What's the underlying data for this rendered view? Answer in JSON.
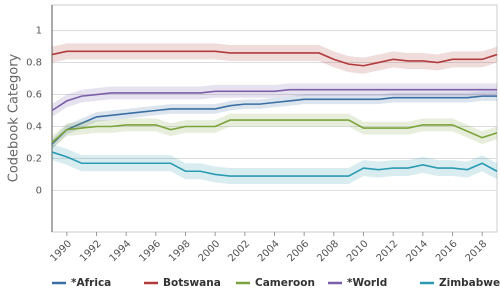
{
  "chart_data": {
    "type": "line",
    "y_label": "Codebook Category",
    "x": [
      1989,
      1990,
      1991,
      1992,
      1993,
      1994,
      1995,
      1996,
      1997,
      1998,
      1999,
      2000,
      2001,
      2002,
      2003,
      2004,
      2005,
      2006,
      2007,
      2008,
      2009,
      2010,
      2011,
      2012,
      2013,
      2014,
      2015,
      2016,
      2017,
      2018,
      2019
    ],
    "xlim": [
      1989,
      2019
    ],
    "xticks": [
      1990,
      1992,
      1994,
      1996,
      1998,
      2000,
      2002,
      2004,
      2006,
      2008,
      2010,
      2012,
      2014,
      2016,
      2018
    ],
    "ylim": [
      -0.26,
      1.16
    ],
    "yticks": [
      0,
      0.2,
      0.4,
      0.6,
      0.8,
      1
    ],
    "grid": true,
    "series": [
      {
        "name": "*Africa",
        "color": "#3b6fa3",
        "ci": 0.03,
        "values": [
          0.29,
          0.38,
          0.42,
          0.46,
          0.47,
          0.48,
          0.49,
          0.5,
          0.51,
          0.51,
          0.51,
          0.51,
          0.53,
          0.54,
          0.54,
          0.55,
          0.56,
          0.57,
          0.57,
          0.57,
          0.57,
          0.57,
          0.57,
          0.58,
          0.58,
          0.58,
          0.58,
          0.58,
          0.58,
          0.59,
          0.59
        ]
      },
      {
        "name": "Botswana",
        "color": "#b23b3b",
        "ci": 0.05,
        "values": [
          0.85,
          0.87,
          0.87,
          0.87,
          0.87,
          0.87,
          0.87,
          0.87,
          0.87,
          0.87,
          0.87,
          0.87,
          0.86,
          0.86,
          0.86,
          0.86,
          0.86,
          0.86,
          0.86,
          0.82,
          0.79,
          0.78,
          0.8,
          0.82,
          0.81,
          0.81,
          0.8,
          0.82,
          0.82,
          0.82,
          0.85
        ]
      },
      {
        "name": "Cameroon",
        "color": "#7ba33b",
        "ci": 0.04,
        "values": [
          0.3,
          0.38,
          0.39,
          0.4,
          0.4,
          0.41,
          0.41,
          0.41,
          0.38,
          0.4,
          0.4,
          0.4,
          0.44,
          0.44,
          0.44,
          0.44,
          0.44,
          0.44,
          0.44,
          0.44,
          0.44,
          0.39,
          0.39,
          0.39,
          0.39,
          0.41,
          0.41,
          0.41,
          0.37,
          0.33,
          0.36
        ]
      },
      {
        "name": "*World",
        "color": "#7b5fa8",
        "ci": 0.04,
        "values": [
          0.5,
          0.56,
          0.59,
          0.6,
          0.61,
          0.61,
          0.61,
          0.61,
          0.61,
          0.61,
          0.61,
          0.62,
          0.62,
          0.62,
          0.62,
          0.62,
          0.63,
          0.63,
          0.63,
          0.63,
          0.63,
          0.63,
          0.63,
          0.63,
          0.63,
          0.63,
          0.63,
          0.63,
          0.63,
          0.63,
          0.63
        ]
      },
      {
        "name": "Zimbabwe",
        "color": "#2a9bb2",
        "ci": 0.05,
        "values": [
          0.24,
          0.21,
          0.17,
          0.17,
          0.17,
          0.17,
          0.17,
          0.17,
          0.17,
          0.12,
          0.12,
          0.1,
          0.09,
          0.09,
          0.09,
          0.09,
          0.09,
          0.09,
          0.09,
          0.09,
          0.09,
          0.14,
          0.13,
          0.14,
          0.14,
          0.16,
          0.14,
          0.14,
          0.13,
          0.17,
          0.12
        ]
      }
    ]
  }
}
